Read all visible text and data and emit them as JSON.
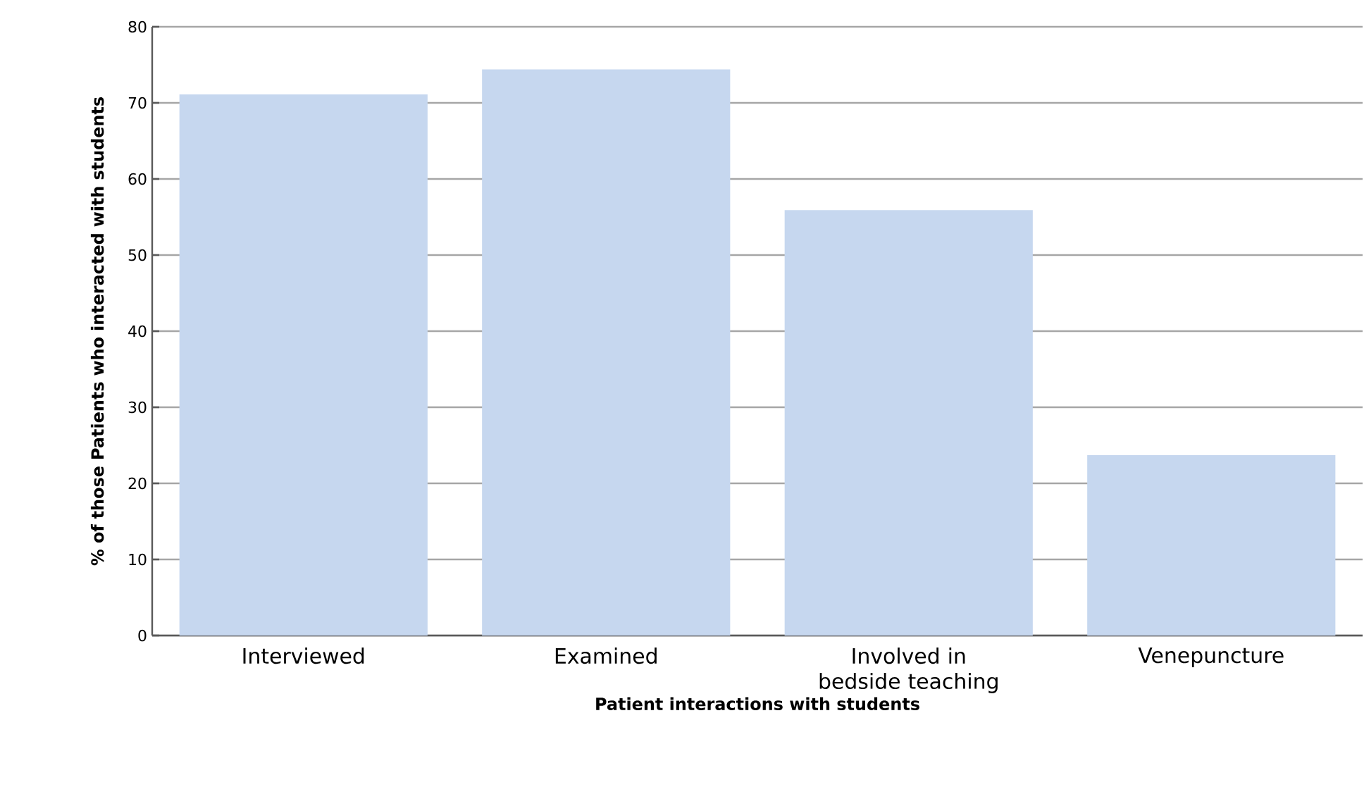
{
  "chart_data": {
    "type": "bar",
    "xlabel": "Patient interactions with students",
    "ylabel": "% of those Patients who interacted with students",
    "categories": [
      "Interviewed",
      "Examined",
      "Involved in bedside teaching",
      "Venepuncture"
    ],
    "values": [
      71.1,
      74.4,
      55.9,
      23.7
    ],
    "color": "#c6d7ef",
    "ylim": [
      0,
      80
    ],
    "yticks": [
      0,
      10,
      20,
      30,
      40,
      50,
      60,
      70,
      80
    ],
    "grid": "y"
  }
}
